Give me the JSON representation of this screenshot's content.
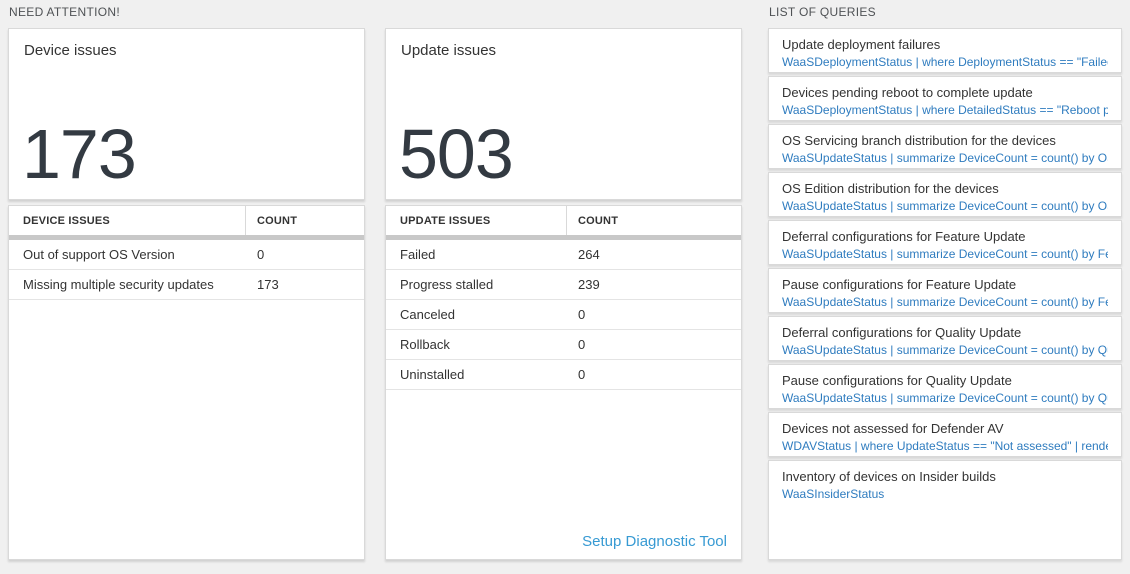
{
  "need_attention": {
    "title": "NEED ATTENTION!",
    "cards": [
      {
        "title": "Device issues",
        "count": "173",
        "table": {
          "headers": [
            "DEVICE ISSUES",
            "COUNT"
          ],
          "rows": [
            {
              "label": "Out of support OS Version",
              "count": "0"
            },
            {
              "label": "Missing multiple security updates",
              "count": "173"
            }
          ]
        }
      },
      {
        "title": "Update issues",
        "count": "503",
        "table": {
          "headers": [
            "UPDATE ISSUES",
            "COUNT"
          ],
          "rows": [
            {
              "label": "Failed",
              "count": "264"
            },
            {
              "label": "Progress stalled",
              "count": "239"
            },
            {
              "label": "Canceled",
              "count": "0"
            },
            {
              "label": "Rollback",
              "count": "0"
            },
            {
              "label": "Uninstalled",
              "count": "0"
            }
          ]
        },
        "footer_link": "Setup Diagnostic Tool"
      }
    ]
  },
  "list_of_queries": {
    "title": "LIST OF QUERIES",
    "items": [
      {
        "title": "Update deployment failures",
        "query": "WaaSDeploymentStatus | where DeploymentStatus == \"Failed\" |..."
      },
      {
        "title": "Devices pending reboot to complete update",
        "query": "WaaSDeploymentStatus | where DetailedStatus == \"Reboot pend..."
      },
      {
        "title": "OS Servicing branch distribution for the devices",
        "query": "WaaSUpdateStatus | summarize DeviceCount = count() by OSSer..."
      },
      {
        "title": "OS Edition distribution for the devices",
        "query": "WaaSUpdateStatus | summarize DeviceCount = count() by OSEdit..."
      },
      {
        "title": "Deferral configurations for Feature Update",
        "query": "WaaSUpdateStatus | summarize DeviceCount = count() by Featur..."
      },
      {
        "title": "Pause configurations for Feature Update",
        "query": "WaaSUpdateStatus | summarize DeviceCount = count() by Featur..."
      },
      {
        "title": "Deferral configurations for Quality Update",
        "query": "WaaSUpdateStatus | summarize DeviceCount = count() by Qualit..."
      },
      {
        "title": "Pause configurations for Quality Update",
        "query": "WaaSUpdateStatus | summarize DeviceCount = count() by Qualit..."
      },
      {
        "title": "Devices not assessed for Defender AV",
        "query": "WDAVStatus | where UpdateStatus == \"Not assessed\" | render ta..."
      },
      {
        "title": "Inventory of devices on Insider builds",
        "query": "WaaSInsiderStatus"
      }
    ]
  },
  "colors": {
    "page_background": "#f0f0f0",
    "big_number": "#333a42",
    "query_link": "#2f7cbf",
    "setup_link": "#379ad3",
    "table_header_divider": "#c8c8c8"
  }
}
